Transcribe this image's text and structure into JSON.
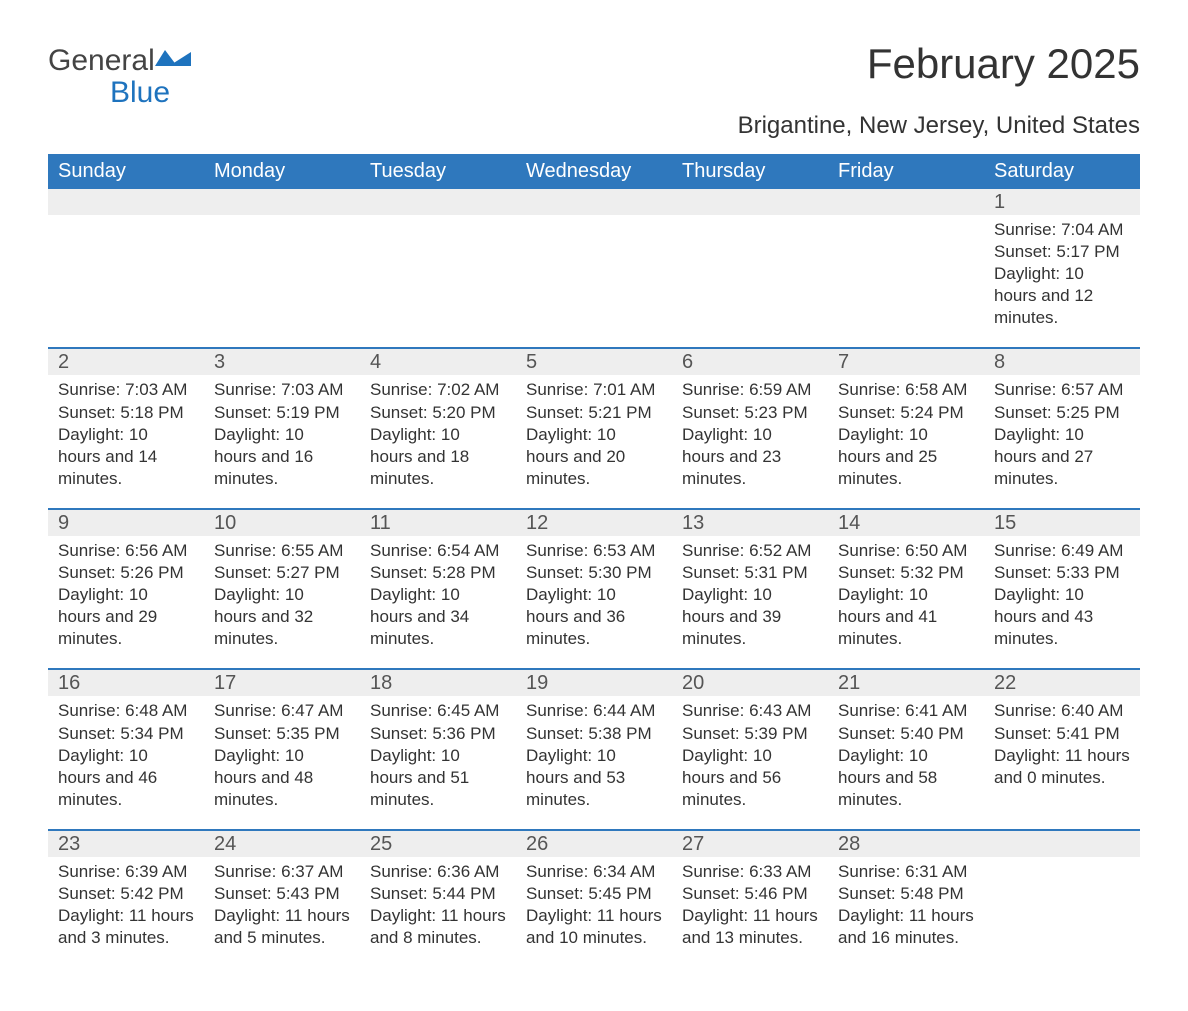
{
  "logo": {
    "word1": "General",
    "word2": "Blue",
    "shape_color": "#1e73be",
    "text_color_main": "#444444",
    "text_color_blue": "#1e73be"
  },
  "title": "February 2025",
  "subtitle": "Brigantine, New Jersey, United States",
  "colors": {
    "header_bg": "#2f78bd",
    "header_text": "#ffffff",
    "week_border": "#2f78bd",
    "strip_bg": "#eeeeee",
    "strip_text": "#555555",
    "body_text": "#333333",
    "page_bg": "#ffffff"
  },
  "typography": {
    "title_fontsize": 42,
    "subtitle_fontsize": 24,
    "dayhead_fontsize": 20,
    "daynum_fontsize": 20,
    "body_fontsize": 17
  },
  "day_headers": [
    "Sunday",
    "Monday",
    "Tuesday",
    "Wednesday",
    "Thursday",
    "Friday",
    "Saturday"
  ],
  "weeks": [
    [
      null,
      null,
      null,
      null,
      null,
      null,
      {
        "n": "1",
        "sunrise": "Sunrise: 7:04 AM",
        "sunset": "Sunset: 5:17 PM",
        "daylight": "Daylight: 10 hours and 12 minutes."
      }
    ],
    [
      {
        "n": "2",
        "sunrise": "Sunrise: 7:03 AM",
        "sunset": "Sunset: 5:18 PM",
        "daylight": "Daylight: 10 hours and 14 minutes."
      },
      {
        "n": "3",
        "sunrise": "Sunrise: 7:03 AM",
        "sunset": "Sunset: 5:19 PM",
        "daylight": "Daylight: 10 hours and 16 minutes."
      },
      {
        "n": "4",
        "sunrise": "Sunrise: 7:02 AM",
        "sunset": "Sunset: 5:20 PM",
        "daylight": "Daylight: 10 hours and 18 minutes."
      },
      {
        "n": "5",
        "sunrise": "Sunrise: 7:01 AM",
        "sunset": "Sunset: 5:21 PM",
        "daylight": "Daylight: 10 hours and 20 minutes."
      },
      {
        "n": "6",
        "sunrise": "Sunrise: 6:59 AM",
        "sunset": "Sunset: 5:23 PM",
        "daylight": "Daylight: 10 hours and 23 minutes."
      },
      {
        "n": "7",
        "sunrise": "Sunrise: 6:58 AM",
        "sunset": "Sunset: 5:24 PM",
        "daylight": "Daylight: 10 hours and 25 minutes."
      },
      {
        "n": "8",
        "sunrise": "Sunrise: 6:57 AM",
        "sunset": "Sunset: 5:25 PM",
        "daylight": "Daylight: 10 hours and 27 minutes."
      }
    ],
    [
      {
        "n": "9",
        "sunrise": "Sunrise: 6:56 AM",
        "sunset": "Sunset: 5:26 PM",
        "daylight": "Daylight: 10 hours and 29 minutes."
      },
      {
        "n": "10",
        "sunrise": "Sunrise: 6:55 AM",
        "sunset": "Sunset: 5:27 PM",
        "daylight": "Daylight: 10 hours and 32 minutes."
      },
      {
        "n": "11",
        "sunrise": "Sunrise: 6:54 AM",
        "sunset": "Sunset: 5:28 PM",
        "daylight": "Daylight: 10 hours and 34 minutes."
      },
      {
        "n": "12",
        "sunrise": "Sunrise: 6:53 AM",
        "sunset": "Sunset: 5:30 PM",
        "daylight": "Daylight: 10 hours and 36 minutes."
      },
      {
        "n": "13",
        "sunrise": "Sunrise: 6:52 AM",
        "sunset": "Sunset: 5:31 PM",
        "daylight": "Daylight: 10 hours and 39 minutes."
      },
      {
        "n": "14",
        "sunrise": "Sunrise: 6:50 AM",
        "sunset": "Sunset: 5:32 PM",
        "daylight": "Daylight: 10 hours and 41 minutes."
      },
      {
        "n": "15",
        "sunrise": "Sunrise: 6:49 AM",
        "sunset": "Sunset: 5:33 PM",
        "daylight": "Daylight: 10 hours and 43 minutes."
      }
    ],
    [
      {
        "n": "16",
        "sunrise": "Sunrise: 6:48 AM",
        "sunset": "Sunset: 5:34 PM",
        "daylight": "Daylight: 10 hours and 46 minutes."
      },
      {
        "n": "17",
        "sunrise": "Sunrise: 6:47 AM",
        "sunset": "Sunset: 5:35 PM",
        "daylight": "Daylight: 10 hours and 48 minutes."
      },
      {
        "n": "18",
        "sunrise": "Sunrise: 6:45 AM",
        "sunset": "Sunset: 5:36 PM",
        "daylight": "Daylight: 10 hours and 51 minutes."
      },
      {
        "n": "19",
        "sunrise": "Sunrise: 6:44 AM",
        "sunset": "Sunset: 5:38 PM",
        "daylight": "Daylight: 10 hours and 53 minutes."
      },
      {
        "n": "20",
        "sunrise": "Sunrise: 6:43 AM",
        "sunset": "Sunset: 5:39 PM",
        "daylight": "Daylight: 10 hours and 56 minutes."
      },
      {
        "n": "21",
        "sunrise": "Sunrise: 6:41 AM",
        "sunset": "Sunset: 5:40 PM",
        "daylight": "Daylight: 10 hours and 58 minutes."
      },
      {
        "n": "22",
        "sunrise": "Sunrise: 6:40 AM",
        "sunset": "Sunset: 5:41 PM",
        "daylight": "Daylight: 11 hours and 0 minutes."
      }
    ],
    [
      {
        "n": "23",
        "sunrise": "Sunrise: 6:39 AM",
        "sunset": "Sunset: 5:42 PM",
        "daylight": "Daylight: 11 hours and 3 minutes."
      },
      {
        "n": "24",
        "sunrise": "Sunrise: 6:37 AM",
        "sunset": "Sunset: 5:43 PM",
        "daylight": "Daylight: 11 hours and 5 minutes."
      },
      {
        "n": "25",
        "sunrise": "Sunrise: 6:36 AM",
        "sunset": "Sunset: 5:44 PM",
        "daylight": "Daylight: 11 hours and 8 minutes."
      },
      {
        "n": "26",
        "sunrise": "Sunrise: 6:34 AM",
        "sunset": "Sunset: 5:45 PM",
        "daylight": "Daylight: 11 hours and 10 minutes."
      },
      {
        "n": "27",
        "sunrise": "Sunrise: 6:33 AM",
        "sunset": "Sunset: 5:46 PM",
        "daylight": "Daylight: 11 hours and 13 minutes."
      },
      {
        "n": "28",
        "sunrise": "Sunrise: 6:31 AM",
        "sunset": "Sunset: 5:48 PM",
        "daylight": "Daylight: 11 hours and 16 minutes."
      },
      null
    ]
  ]
}
